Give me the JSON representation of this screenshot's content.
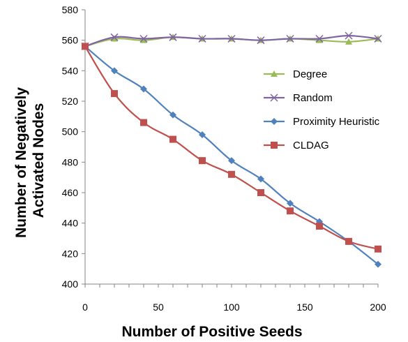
{
  "chart_data": {
    "type": "line",
    "title": "",
    "xlabel": "Number of Positive Seeds",
    "ylabel": "Number of Negatively Activated Nodes",
    "xlim": [
      0,
      200
    ],
    "ylim": [
      400,
      580
    ],
    "xticks": [
      0,
      50,
      100,
      150,
      200
    ],
    "yticks": [
      400,
      420,
      440,
      460,
      480,
      500,
      520,
      540,
      560,
      580
    ],
    "grid": false,
    "legend_position": "right",
    "series": [
      {
        "name": "Degree",
        "color": "#9BBB59",
        "marker": "triangle",
        "x": [
          0,
          20,
          40,
          60,
          80,
          100,
          120,
          140,
          160,
          180,
          200
        ],
        "y": [
          556,
          561,
          560,
          562,
          561,
          561,
          560,
          561,
          560,
          559,
          561
        ]
      },
      {
        "name": "Random",
        "color": "#8064A2",
        "marker": "x",
        "x": [
          0,
          20,
          40,
          60,
          80,
          100,
          120,
          140,
          160,
          180,
          200
        ],
        "y": [
          556,
          562,
          561,
          562,
          561,
          561,
          560,
          561,
          561,
          563,
          561
        ]
      },
      {
        "name": "Proximity Heuristic",
        "color": "#4F81BD",
        "marker": "diamond",
        "x": [
          0,
          20,
          40,
          60,
          80,
          100,
          120,
          140,
          160,
          180,
          200
        ],
        "y": [
          556,
          540,
          528,
          511,
          498,
          481,
          469,
          453,
          441,
          428,
          413
        ]
      },
      {
        "name": "CLDAG",
        "color": "#C0504D",
        "marker": "square",
        "x": [
          0,
          20,
          40,
          60,
          80,
          100,
          120,
          140,
          160,
          180,
          200
        ],
        "y": [
          556,
          525,
          506,
          495,
          481,
          472,
          460,
          448,
          438,
          428,
          423
        ]
      }
    ]
  }
}
